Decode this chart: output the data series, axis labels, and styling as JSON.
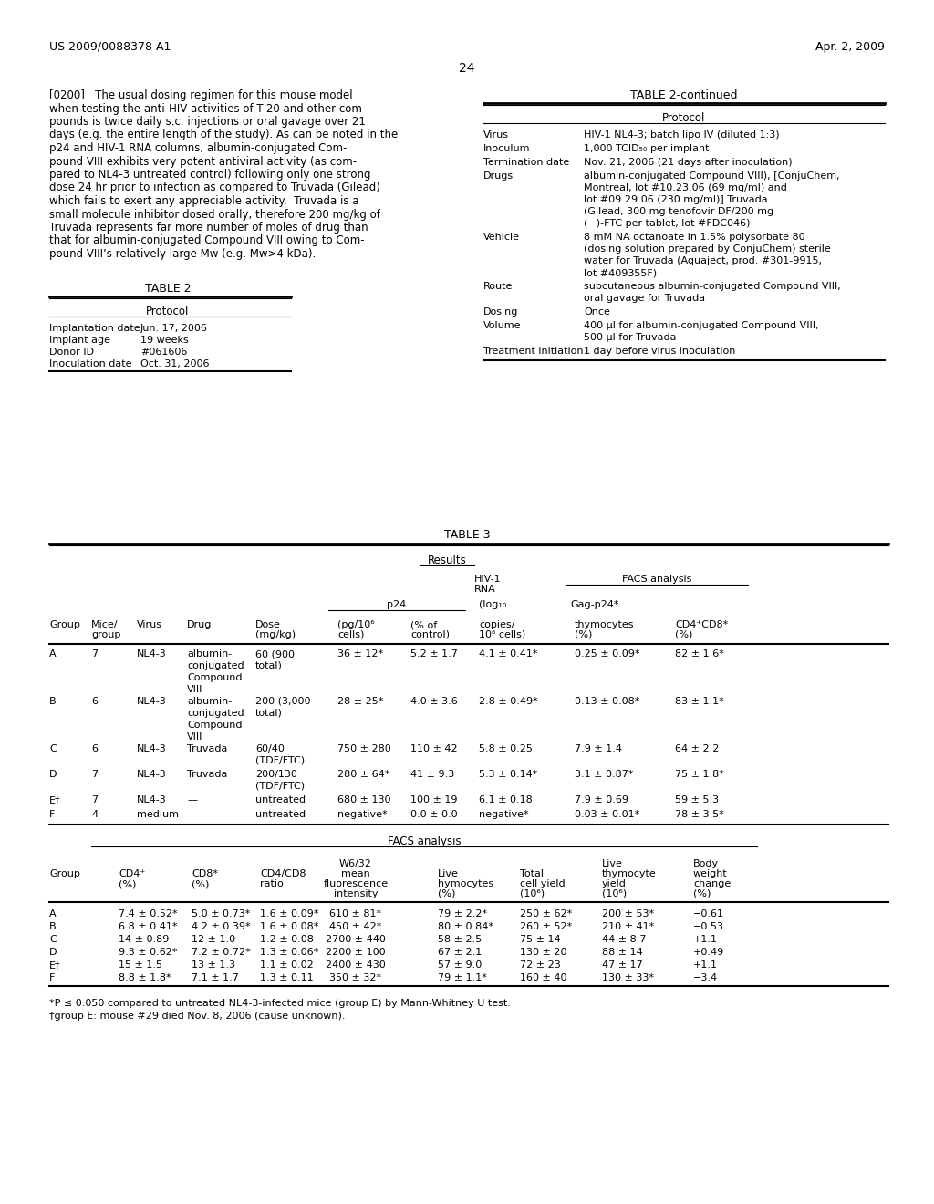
{
  "page_header_left": "US 2009/0088378 A1",
  "page_header_right": "Apr. 2, 2009",
  "page_number": "24",
  "paragraph_text": "[0200]  The usual dosing regimen for this mouse model when testing the anti-HIV activities of T-20 and other compounds is twice daily s.c. injections or oral gavage over 21 days (e.g. the entire length of the study). As can be noted in the p24 and HIV-1 RNA columns, albumin-conjugated Compound VIII exhibits very potent antiviral activity (as compared to NL4-3 untreated control) following only one strong dose 24 hr prior to infection as compared to Truvada (Gilead) which fails to exert any appreciable activity. Truvada is a small molecule inhibitor dosed orally, therefore 200 mg/kg of Truvada represents far more number of moles of drug than that for albumin-conjugated Compound VIII owing to Compound VIII’s relatively large Mw (e.g. Mw>4 kDa).",
  "table2_title": "TABLE 2",
  "table2_continued_title": "TABLE 2-continued",
  "table2_left": {
    "header": "Protocol",
    "rows": [
      [
        "Implantation date",
        "Jun. 17, 2006"
      ],
      [
        "Implant age",
        "19 weeks"
      ],
      [
        "Donor ID",
        "#061606"
      ],
      [
        "Inoculation date",
        "Oct. 31, 2006"
      ]
    ]
  },
  "table2_right": {
    "header": "Protocol",
    "rows": [
      [
        "Virus",
        "HIV-1 NL4-3; batch lipo IV (diluted 1:3)"
      ],
      [
        "Inoculum",
        "1,000 TCID₅₀ per implant"
      ],
      [
        "Termination date",
        "Nov. 21, 2006 (21 days after inoculation)"
      ],
      [
        "Drugs",
        "albumin-conjugated Compound VIII), [ConjuChem,\nMontreal, lot #10.23.06 (69 mg/ml) and\nlot #09.29.06 (230 mg/ml)] Truvada\n(Gilead, 300 mg tenofovir DF/200 mg\n(−)-FTC per tablet, lot #FDC046)"
      ],
      [
        "Vehicle",
        "8 mM NA octanoate in 1.5% polysorbate 80\n(dosing solution prepared by ConjuChem) sterile\nwater for Truvada (Aquaject, prod. #301-9915,\nlot #409355F)"
      ],
      [
        "Route",
        "subcutaneous albumin-conjugated Compound VIII,\noral gavage for Truvada"
      ],
      [
        "Dosing",
        "Once"
      ],
      [
        "Volume",
        "400 μl for albumin-conjugated Compound VIII,\n500 μl for Truvada"
      ],
      [
        "Treatment initiation",
        "1 day before virus inoculation"
      ]
    ]
  },
  "table3_title": "TABLE 3",
  "table3_upper": {
    "col_headers": [
      "Group",
      "Mice/\ngroup",
      "Virus",
      "Drug",
      "Dose\n(mg/kg)",
      "p24\n(pg/10⁶\ncells)",
      "p24\n(% of\ncontrol)",
      "HIV-1 RNA\n(log₁₀\ncopies/\n10⁶ cells)",
      "Gag-p24*\nthymocytes\n(%)",
      "CD4+CD8*\n(%)"
    ],
    "rows": [
      [
        "A",
        "7",
        "NL4-3",
        "albumin-\nconjugated\nCompound\nVIII",
        "60 (900\ntotal)",
        "36 ± 12*",
        "5.2 ± 1.7",
        "4.1 ± 0.41*",
        "0.25 ± 0.09*",
        "82 ± 1.6*"
      ],
      [
        "B",
        "6",
        "NL4-3",
        "albumin-\nconjugated\nCompound\nVIII",
        "200 (3,000\ntotal)",
        "28 ± 25*",
        "4.0 ± 3.6",
        "2.8 ± 0.49*",
        "0.13 ± 0.08*",
        "83 ± 1.1*"
      ],
      [
        "C",
        "6",
        "NL4-3",
        "Truvada",
        "60/40\n(TDF/FTC)",
        "750 ± 280",
        "110 ± 42",
        "5.8 ± 0.25",
        "7.9 ± 1.4",
        "64 ± 2.2"
      ],
      [
        "D",
        "7",
        "NL4-3",
        "Truvada",
        "200/130\n(TDF/FTC)",
        "280 ± 64*",
        "41 ± 9.3",
        "5.3 ± 0.14*",
        "3.1 ± 0.87*",
        "75 ± 1.8*"
      ],
      [
        "E†",
        "7",
        "NL4-3",
        "—",
        "untreated",
        "680 ± 130",
        "100 ± 19",
        "6.1 ± 0.18",
        "7.9 ± 0.69",
        "59 ± 5.3"
      ],
      [
        "F",
        "4",
        "medium",
        "—",
        "untreated",
        "negative*",
        "0.0 ± 0.0",
        "negative*",
        "0.03 ± 0.01*",
        "78 ± 3.5*"
      ]
    ]
  },
  "table3_lower": {
    "col_headers": [
      "Group",
      "CD4+\n(%)",
      "CD8*\n(%)",
      "CD4/CD8\nratio",
      "W6/32 mean\nfluorescence\nintensity",
      "Live\nhymocytes\n(%)",
      "Total\ncell yield\n(10⁶)",
      "Live\nthymocyte\nyield\n(10⁶)",
      "Body\nweight\nchange\n(%)"
    ],
    "rows": [
      [
        "A",
        "7.4 ± 0.52*",
        "5.0 ± 0.73*",
        "1.6 ± 0.09*",
        "610 ± 81*",
        "79 ± 2.2*",
        "250 ± 62*",
        "200 ± 53*",
        "−0.61"
      ],
      [
        "B",
        "6.8 ± 0.41*",
        "4.2 ± 0.39*",
        "1.6 ± 0.08*",
        "450 ± 42*",
        "80 ± 0.84*",
        "260 ± 52*",
        "210 ± 41*",
        "−0.53"
      ],
      [
        "C",
        "14 ± 0.89",
        "12 ± 1.0",
        "1.2 ± 0.08",
        "2700 ± 440",
        "58 ± 2.5",
        "75 ± 14",
        "44 ± 8.7",
        "+1.1"
      ],
      [
        "D",
        "9.3 ± 0.62*",
        "7.2 ± 0.72*",
        "1.3 ± 0.06*",
        "2200 ± 100",
        "67 ± 2.1",
        "130 ± 20",
        "88 ± 14",
        "+0.49"
      ],
      [
        "E†",
        "15 ± 1.5",
        "13 ± 1.3",
        "1.1 ± 0.02",
        "2400 ± 430",
        "57 ± 9.0",
        "72 ± 23",
        "47 ± 17",
        "+1.1"
      ],
      [
        "F",
        "8.8 ± 1.8*",
        "7.1 ± 1.7",
        "1.3 ± 0.11",
        "350 ± 32*",
        "79 ± 1.1*",
        "160 ± 40",
        "130 ± 33*",
        "−3.4"
      ]
    ]
  },
  "footnotes": [
    "*P ≤ 0.050 compared to untreated NL4-3-infected mice (group E) by Mann-Whitney U test.",
    "†group E: mouse #29 died Nov. 8, 2006 (cause unknown)."
  ]
}
